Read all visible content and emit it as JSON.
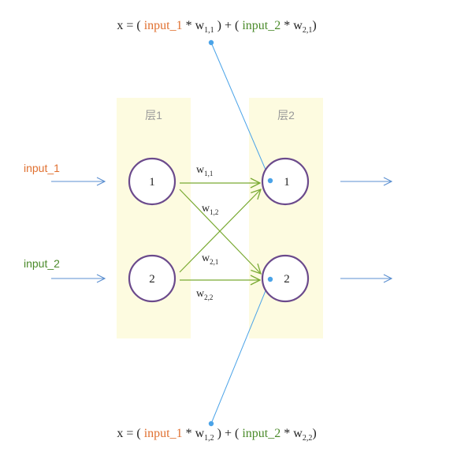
{
  "formula_top": {
    "prefix": "x = ( ",
    "in1": "input_1",
    "mul1": " * w",
    "sub1": "1,1",
    "mid": " ) + ( ",
    "in2": "input_2",
    "mul2": " * w",
    "sub2": "2,1",
    "suffix": ")"
  },
  "formula_bottom": {
    "prefix": "x = ( ",
    "in1": "input_1",
    "mul1": " * w",
    "sub1": "1,2",
    "mid": " ) + ( ",
    "in2": "input_2",
    "mul2": " * w",
    "sub2": "2,2",
    "suffix": ")"
  },
  "layers": [
    {
      "label": "层1",
      "nodes": [
        "1",
        "2"
      ]
    },
    {
      "label": "层2",
      "nodes": [
        "1",
        "2"
      ]
    }
  ],
  "inputs": [
    "input_1",
    "input_2"
  ],
  "weights": {
    "w11": {
      "base": "w",
      "sub": "1,1"
    },
    "w12": {
      "base": "w",
      "sub": "1,2"
    },
    "w21": {
      "base": "w",
      "sub": "2,1"
    },
    "w22": {
      "base": "w",
      "sub": "2,2"
    }
  },
  "colors": {
    "input1": "#e07030",
    "input2": "#4a8a2a",
    "node_border": "#6b4a8c",
    "layer_bg": "#fdfbe0",
    "arrow_blue": "#5b8fd0",
    "connection_green": "#7aaa33",
    "pointer_blue": "#4aa3e8",
    "text": "#222222",
    "layer_label": "#999999"
  }
}
